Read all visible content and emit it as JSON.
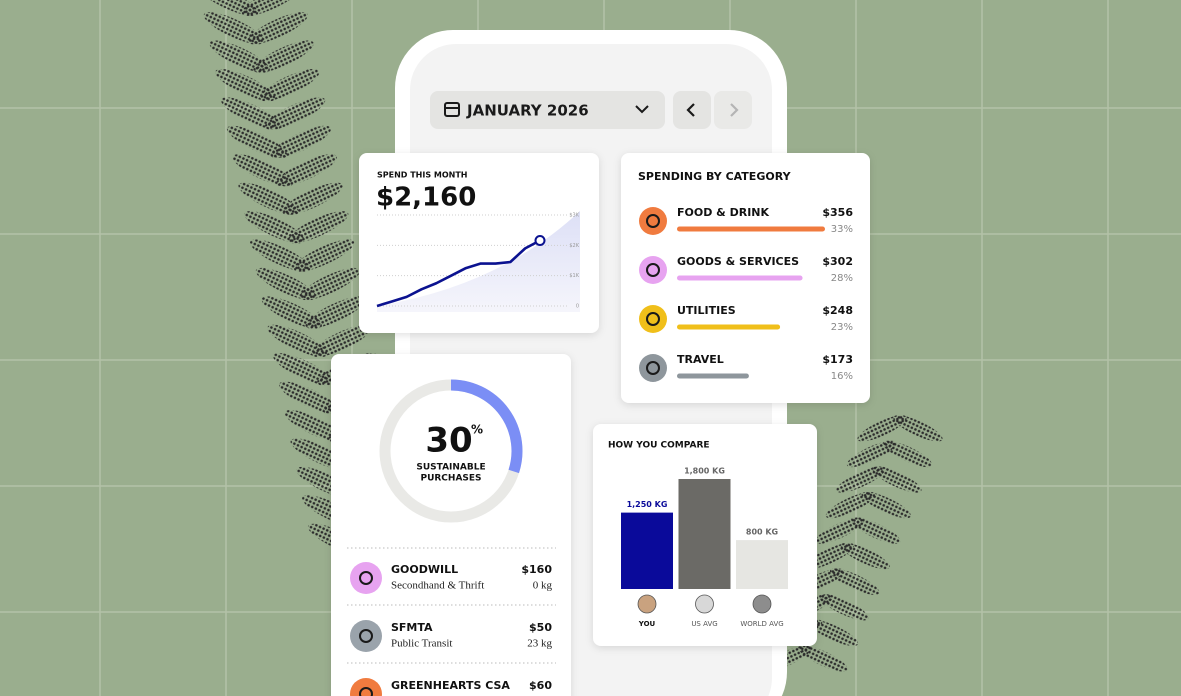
{
  "header": {
    "month": "JANUARY 2026"
  },
  "chart_data": [
    {
      "type": "line",
      "title": "SPEND THIS MONTH",
      "subtitle": "$2,160",
      "values": [
        0,
        150,
        300,
        550,
        750,
        1000,
        1250,
        1400,
        1400,
        1450,
        1900,
        2160
      ],
      "color": "#0b1290",
      "ylim": [
        0,
        3000
      ],
      "yticks": [
        0,
        {
          "value": 1000,
          "label": "$1K"
        },
        {
          "value": 2000,
          "label": "$2K"
        },
        {
          "value": 3000,
          "label": "$3K"
        }
      ],
      "grid": true
    },
    {
      "type": "category-bars",
      "title": "SPENDING BY CATEGORY",
      "categories": [
        "FOOD & DRINK",
        "GOODS & SERVICES",
        "UTILITIES",
        "TRAVEL"
      ],
      "values": [
        356,
        302,
        248,
        173
      ],
      "value_labels": [
        "$356",
        "$302",
        "$248",
        "$173"
      ],
      "percents": [
        33,
        28,
        23,
        16
      ],
      "percent_labels": [
        "33%",
        "28%",
        "23%",
        "16%"
      ],
      "colors": [
        "#f07b3f",
        "#e7a3f0",
        "#f0bf1a",
        "#8e969c"
      ]
    },
    {
      "type": "donut",
      "value": 30,
      "unit": "%",
      "label_lines": [
        "SUSTAINABLE",
        "PURCHASES"
      ],
      "color": "#7b8ef5"
    },
    {
      "type": "bar",
      "title": "HOW YOU COMPARE",
      "categories": [
        "YOU",
        "US AVG",
        "WORLD AVG"
      ],
      "values": [
        1250,
        1800,
        800
      ],
      "value_labels": [
        "1,250 KG",
        "1,800 KG",
        "800 KG"
      ],
      "colors": [
        "#0a0a9a",
        "#6b6a66",
        "#e6e6e2"
      ]
    }
  ],
  "transactions": [
    {
      "name": "GOODWILL",
      "category": "Secondhand & Thrift",
      "amount": "$160",
      "footprint": "0 kg"
    },
    {
      "name": "SFMTA",
      "category": "Public Transit",
      "amount": "$50",
      "footprint": "23 kg"
    },
    {
      "name": "GREENHEARTS CSA",
      "amount": "$60"
    }
  ]
}
